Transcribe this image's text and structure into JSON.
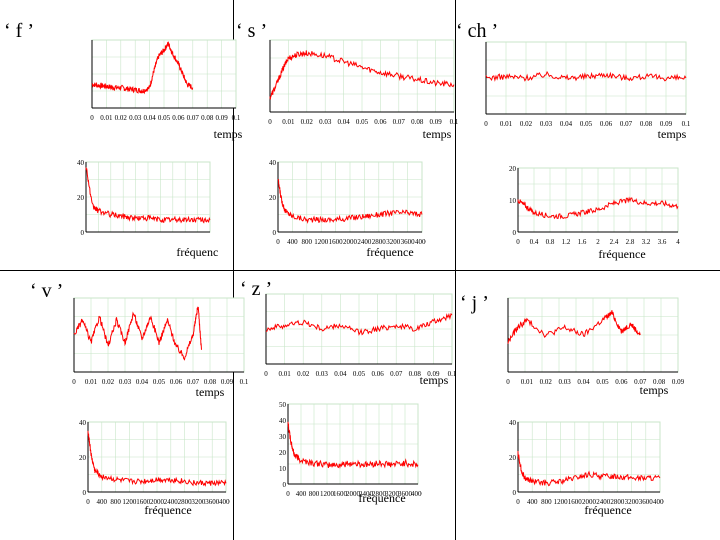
{
  "letters": [
    "‘ f ’",
    "‘ s ’",
    "‘ ch ’",
    "‘ v ’",
    "‘ z ’",
    "‘ j ’"
  ],
  "colors": {
    "signal": "#ff0000",
    "grid": "#c8e6c8",
    "axis": "#000000"
  },
  "chart_data": [
    {
      "id": "f-temps",
      "type": "line",
      "xlabel": "temps",
      "xticks": [
        "0",
        "0.01",
        "0.02",
        "0.03",
        "0.04",
        "0.05",
        "0.06",
        "0.07",
        "0.08",
        "0.09",
        "0.1"
      ],
      "xlim": [
        0,
        0.1
      ],
      "ylim": [
        0,
        1
      ],
      "series": [
        {
          "x": [
            0,
            0.005,
            0.01,
            0.015,
            0.02,
            0.025,
            0.03,
            0.035,
            0.04,
            0.043,
            0.046,
            0.05,
            0.053,
            0.056,
            0.06,
            0.063,
            0.066,
            0.07
          ],
          "values": [
            0.35,
            0.33,
            0.32,
            0.3,
            0.3,
            0.28,
            0.27,
            0.25,
            0.3,
            0.55,
            0.75,
            0.85,
            0.95,
            0.8,
            0.65,
            0.5,
            0.35,
            0.3
          ]
        }
      ]
    },
    {
      "id": "s-temps",
      "type": "line",
      "xlabel": "temps",
      "xticks": [
        "0",
        "0.01",
        "0.02",
        "0.03",
        "0.04",
        "0.05",
        "0.06",
        "0.07",
        "0.08",
        "0.09",
        "0.1"
      ],
      "xlim": [
        0,
        0.1
      ],
      "ylim": [
        0,
        1
      ],
      "series": [
        {
          "x": [
            0,
            0.003,
            0.007,
            0.01,
            0.015,
            0.02,
            0.03,
            0.04,
            0.05,
            0.06,
            0.07,
            0.08,
            0.09,
            0.1
          ],
          "values": [
            0.2,
            0.35,
            0.6,
            0.75,
            0.8,
            0.82,
            0.78,
            0.7,
            0.62,
            0.55,
            0.5,
            0.45,
            0.4,
            0.38
          ]
        }
      ]
    },
    {
      "id": "ch-temps",
      "type": "line",
      "xlabel": "temps",
      "xticks": [
        "0",
        "0.01",
        "0.02",
        "0.03",
        "0.04",
        "0.05",
        "0.06",
        "0.07",
        "0.08",
        "0.09",
        "0.1"
      ],
      "xlim": [
        0,
        0.1
      ],
      "ylim": [
        0,
        1
      ],
      "series": [
        {
          "x": [
            0,
            0.01,
            0.02,
            0.03,
            0.04,
            0.05,
            0.06,
            0.07,
            0.08,
            0.09,
            0.1
          ],
          "values": [
            0.5,
            0.52,
            0.5,
            0.55,
            0.5,
            0.52,
            0.55,
            0.5,
            0.52,
            0.5,
            0.5
          ]
        }
      ]
    },
    {
      "id": "f-freq",
      "type": "line",
      "xlabel": "fréquence",
      "yticks": [
        "40",
        "20",
        "0"
      ],
      "ylim": [
        0,
        40
      ],
      "series": [
        {
          "x": [
            0,
            0.05,
            0.1,
            0.2,
            0.3,
            0.4,
            0.5,
            0.6,
            0.7,
            0.8,
            0.9,
            1
          ],
          "values": [
            38,
            15,
            12,
            10,
            9,
            8,
            8,
            7,
            7,
            7,
            7,
            7
          ]
        }
      ]
    },
    {
      "id": "s-freq",
      "type": "line",
      "xlabel": "fréquence",
      "xticks": [
        "0",
        "400",
        "800",
        "1200",
        "1600",
        "2000",
        "2400",
        "2800",
        "3200",
        "3600",
        "4000"
      ],
      "yticks": [
        "40",
        "20",
        "0"
      ],
      "xlim": [
        0,
        4000
      ],
      "ylim": [
        0,
        40
      ],
      "series": [
        {
          "x": [
            0,
            100,
            200,
            400,
            800,
            1200,
            1600,
            2000,
            2400,
            2800,
            3200,
            3600,
            4000
          ],
          "values": [
            30,
            18,
            12,
            9,
            7,
            7,
            7,
            8,
            9,
            10,
            11,
            11,
            10
          ]
        }
      ]
    },
    {
      "id": "ch-freq",
      "type": "line",
      "xlabel": "fréquence",
      "xticks": [
        "0",
        "0.4",
        "0.8",
        "1.2",
        "1.6",
        "2",
        "2.4",
        "2.8",
        "3.2",
        "3.6",
        "4"
      ],
      "yticks": [
        "20",
        "10",
        "0"
      ],
      "xlim": [
        0,
        4
      ],
      "ylim": [
        0,
        20
      ],
      "series": [
        {
          "x": [
            0,
            0.2,
            0.4,
            0.8,
            1.2,
            1.6,
            2,
            2.4,
            2.8,
            3.2,
            3.6,
            4
          ],
          "values": [
            10,
            8,
            6,
            5,
            5,
            6,
            7,
            9,
            10,
            9,
            9,
            8
          ]
        }
      ]
    },
    {
      "id": "v-temps",
      "type": "line",
      "xlabel": "temps",
      "xticks": [
        "0",
        "0.01",
        "0.02",
        "0.03",
        "0.04",
        "0.05",
        "0.06",
        "0.07",
        "0.08",
        "0.09",
        "0.1"
      ],
      "xlim": [
        0,
        0.1
      ],
      "ylim": [
        0,
        1
      ],
      "series": [
        {
          "x": [
            0,
            0.005,
            0.01,
            0.015,
            0.02,
            0.025,
            0.03,
            0.035,
            0.04,
            0.045,
            0.05,
            0.055,
            0.06,
            0.065,
            0.07,
            0.073,
            0.075
          ],
          "values": [
            0.5,
            0.7,
            0.4,
            0.75,
            0.35,
            0.7,
            0.4,
            0.8,
            0.45,
            0.75,
            0.4,
            0.7,
            0.35,
            0.2,
            0.5,
            0.9,
            0.3
          ]
        }
      ]
    },
    {
      "id": "z-temps",
      "type": "line",
      "xlabel": "temps",
      "xticks": [
        "0",
        "0.01",
        "0.02",
        "0.03",
        "0.04",
        "0.05",
        "0.06",
        "0.07",
        "0.08",
        "0.09",
        "0.1"
      ],
      "xlim": [
        0,
        0.1
      ],
      "ylim": [
        0,
        1
      ],
      "series": [
        {
          "x": [
            0,
            0.01,
            0.02,
            0.03,
            0.04,
            0.05,
            0.06,
            0.07,
            0.08,
            0.09,
            0.1
          ],
          "values": [
            0.5,
            0.55,
            0.6,
            0.5,
            0.55,
            0.45,
            0.5,
            0.55,
            0.5,
            0.6,
            0.7
          ]
        }
      ]
    },
    {
      "id": "j-temps",
      "type": "line",
      "xlabel": "temps",
      "xticks": [
        "0",
        "0.01",
        "0.02",
        "0.03",
        "0.04",
        "0.05",
        "0.06",
        "0.07",
        "0.08",
        "0.09"
      ],
      "xlim": [
        0,
        0.09
      ],
      "ylim": [
        0,
        1
      ],
      "series": [
        {
          "x": [
            0,
            0.005,
            0.01,
            0.02,
            0.03,
            0.04,
            0.05,
            0.055,
            0.06,
            0.065,
            0.07
          ],
          "values": [
            0.4,
            0.6,
            0.7,
            0.5,
            0.6,
            0.5,
            0.7,
            0.8,
            0.55,
            0.65,
            0.5
          ]
        }
      ]
    },
    {
      "id": "v-freq",
      "type": "line",
      "xlabel": "fréquence",
      "xticks": [
        "0",
        "400",
        "800",
        "1200",
        "1600",
        "2000",
        "2400",
        "2800",
        "3200",
        "3600",
        "4000"
      ],
      "yticks": [
        "40",
        "20",
        "0"
      ],
      "xlim": [
        0,
        4000
      ],
      "ylim": [
        0,
        40
      ],
      "series": [
        {
          "x": [
            0,
            100,
            200,
            400,
            800,
            1200,
            1600,
            2000,
            2400,
            2800,
            3200,
            3600,
            4000
          ],
          "values": [
            35,
            20,
            12,
            9,
            7,
            6,
            6,
            7,
            7,
            6,
            5,
            5,
            5
          ]
        }
      ]
    },
    {
      "id": "z-freq",
      "type": "line",
      "xlabel": "fréquence",
      "xticks": [
        "0",
        "400",
        "800",
        "1200",
        "1600",
        "2000",
        "2400",
        "2800",
        "3200",
        "3600",
        "4000"
      ],
      "yticks": [
        "50",
        "40",
        "30",
        "20",
        "10",
        "0"
      ],
      "xlim": [
        0,
        4000
      ],
      "ylim": [
        0,
        50
      ],
      "series": [
        {
          "x": [
            0,
            100,
            200,
            400,
            800,
            1200,
            1600,
            2000,
            2400,
            2800,
            3200,
            3600,
            4000
          ],
          "values": [
            38,
            25,
            18,
            15,
            13,
            12,
            12,
            13,
            12,
            13,
            12,
            13,
            12
          ]
        }
      ]
    },
    {
      "id": "j-freq",
      "type": "line",
      "xlabel": "fréquence",
      "xticks": [
        "0",
        "400",
        "800",
        "1200",
        "1600",
        "2000",
        "2400",
        "2800",
        "3200",
        "3600",
        "4000"
      ],
      "yticks": [
        "40",
        "20",
        "0"
      ],
      "xlim": [
        0,
        4000
      ],
      "ylim": [
        0,
        40
      ],
      "series": [
        {
          "x": [
            0,
            100,
            200,
            400,
            800,
            1200,
            1600,
            2000,
            2400,
            2800,
            3200,
            3600,
            4000
          ],
          "values": [
            22,
            12,
            8,
            6,
            5,
            6,
            8,
            10,
            9,
            9,
            8,
            8,
            8
          ]
        }
      ]
    }
  ]
}
